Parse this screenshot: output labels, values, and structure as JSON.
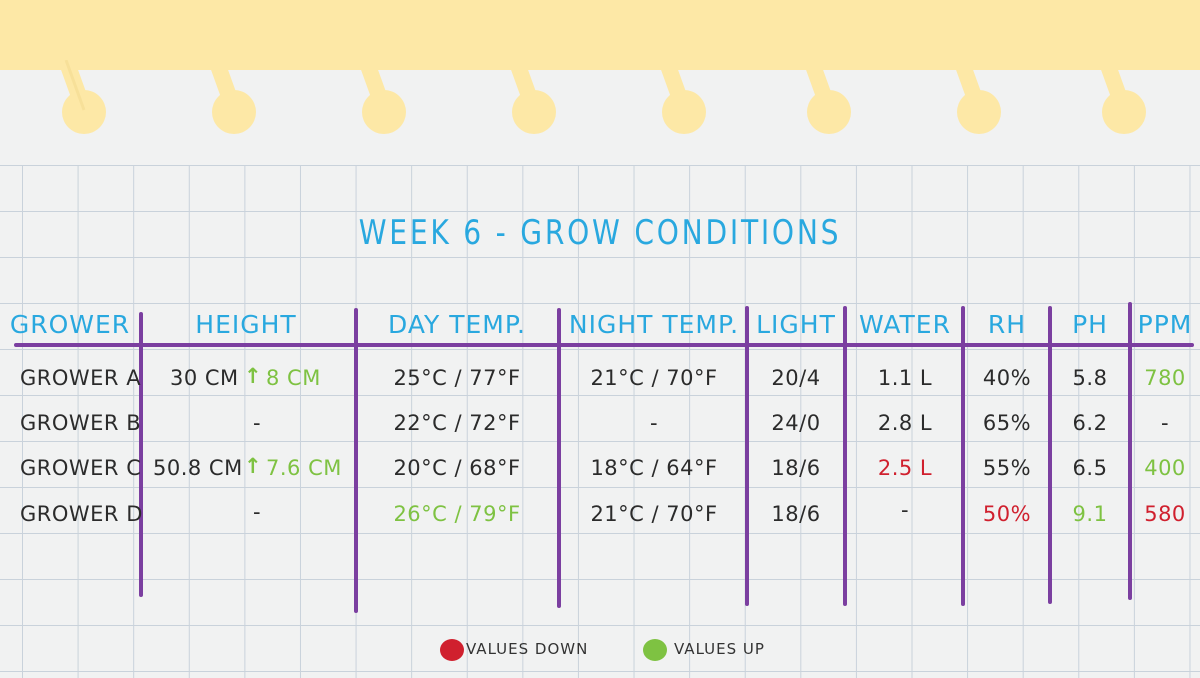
{
  "title": "WEEK 6 - GROW CONDITIONS",
  "columns": [
    "GROWER",
    "HEIGHT",
    "DAY TEMP.",
    "NIGHT TEMP.",
    "LIGHT",
    "WATER",
    "RH",
    "PH",
    "PPM"
  ],
  "rows": [
    {
      "grower": "GROWER A",
      "height": "30 CM",
      "height_change": "8 CM",
      "day_temp": "25°C / 77°F",
      "night_temp": "21°C / 70°F",
      "light": "20/4",
      "water": "1.1 L",
      "rh": "40%",
      "ph": "5.8",
      "ppm": "780"
    },
    {
      "grower": "GROWER B",
      "height": "-",
      "height_change": "",
      "day_temp": "22°C / 72°F",
      "night_temp": "-",
      "light": "24/0",
      "water": "2.8 L",
      "rh": "65%",
      "ph": "6.2",
      "ppm": "-"
    },
    {
      "grower": "GROWER C",
      "height": "50.8 CM",
      "height_change": "7.6 CM",
      "day_temp": "20°C / 68°F",
      "night_temp": "18°C / 64°F",
      "light": "18/6",
      "water": "2.5 L",
      "rh": "55%",
      "ph": "6.5",
      "ppm": "400"
    },
    {
      "grower": "GROWER D",
      "height": "-",
      "height_change": "",
      "day_temp": "26°C / 79°F",
      "night_temp": "21°C / 70°F",
      "light": "18/6",
      "water": "-",
      "rh": "50%",
      "ph": "9.1",
      "ppm": "580"
    }
  ],
  "legend": {
    "down_label": "VALUES DOWN",
    "up_label": "VALUES UP"
  },
  "colors": {
    "up": "#7ec242",
    "down": "#d0202e",
    "header": "#29a8df",
    "divider": "#7b3fa0",
    "binder": "#fde8a6"
  },
  "icons": {
    "height_change": "arrow-up-icon",
    "legend_down": "red-dot-icon",
    "legend_up": "green-dot-icon"
  }
}
